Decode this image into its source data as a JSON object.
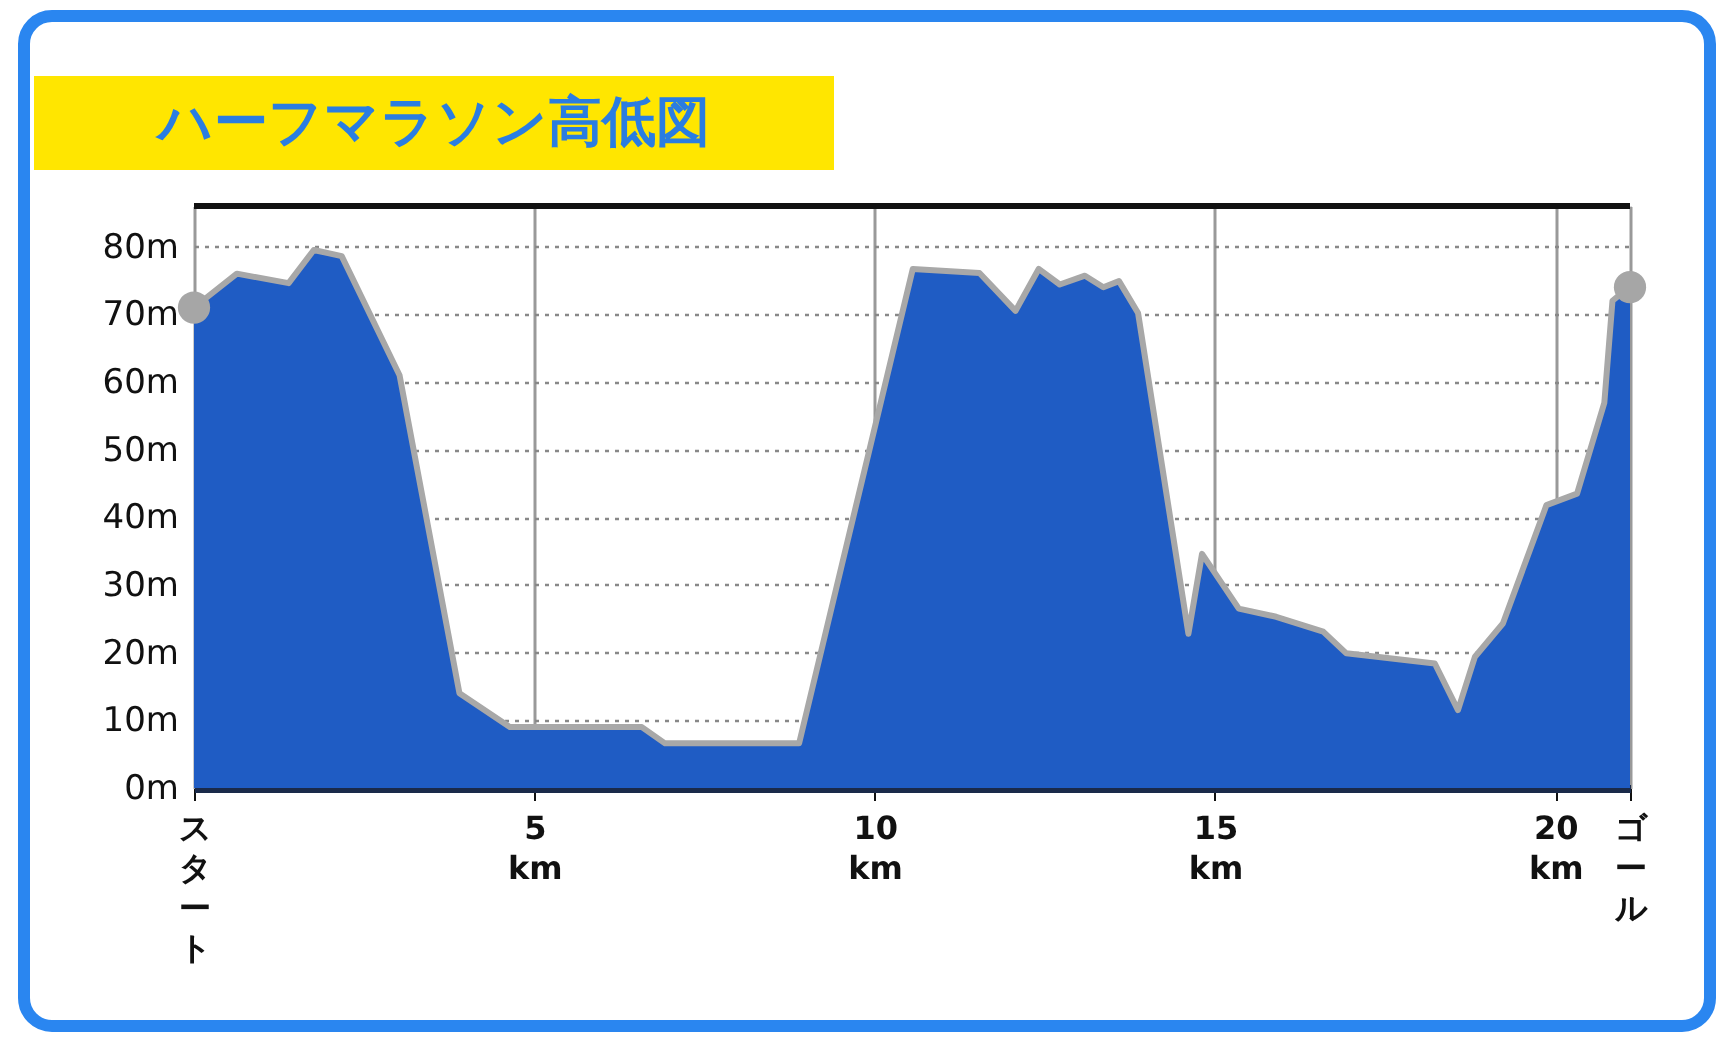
{
  "chart_data": {
    "type": "area",
    "title": "ハーフマラソン高低図",
    "series": [
      {
        "color": "#1f5cc4",
        "x": [
          0,
          0.63,
          1.39,
          1.76,
          2.17,
          3.02,
          3.9,
          4.64,
          6.58,
          6.92,
          8.89,
          10.56,
          11.54,
          12.07,
          12.41,
          12.72,
          13.09,
          13.36,
          13.59,
          13.87,
          14.61,
          14.81,
          15.35,
          15.9,
          16.59,
          16.93,
          18.23,
          18.57,
          18.82,
          19.23,
          19.87,
          20.32,
          20.72,
          20.84,
          21.0,
          21.0975
        ],
        "values": [
          71,
          76,
          74.6,
          79.5,
          78.6,
          61,
          14,
          9,
          9,
          6.6,
          6.6,
          76.7,
          76.1,
          70.5,
          76.7,
          74.4,
          75.7,
          74,
          74.9,
          70.2,
          22.8,
          34.6,
          26.5,
          25.3,
          23.1,
          19.9,
          18.4,
          11.5,
          19.4,
          24.3,
          41.8,
          43.5,
          56.9,
          72,
          73.3,
          74
        ]
      },
      {
        "type": "scatter",
        "color": "#a6a6a6",
        "marker": "circle",
        "x": [
          0,
          21.0975
        ],
        "values": [
          71,
          74
        ]
      }
    ],
    "xlim": [
      0,
      21.0975
    ],
    "xticks": [
      {
        "value": 0,
        "label": "スタート"
      },
      {
        "value": 5,
        "label": "5 km"
      },
      {
        "value": 10,
        "label": "10 km"
      },
      {
        "value": 15,
        "label": "15 km"
      },
      {
        "value": 20,
        "label": "20 km"
      },
      {
        "value": 21.0975,
        "label": "ゴール"
      }
    ],
    "ylim": [
      0,
      86
    ],
    "yticks": [
      {
        "value": 0,
        "label": "0m"
      },
      {
        "value": 10,
        "label": "10m"
      },
      {
        "value": 20,
        "label": "20m"
      },
      {
        "value": 30,
        "label": "30m"
      },
      {
        "value": 40,
        "label": "40m"
      },
      {
        "value": 50,
        "label": "50m"
      },
      {
        "value": 60,
        "label": "60m"
      },
      {
        "value": 70,
        "label": "70m"
      },
      {
        "value": 80,
        "label": "80m"
      }
    ],
    "grid": true
  }
}
